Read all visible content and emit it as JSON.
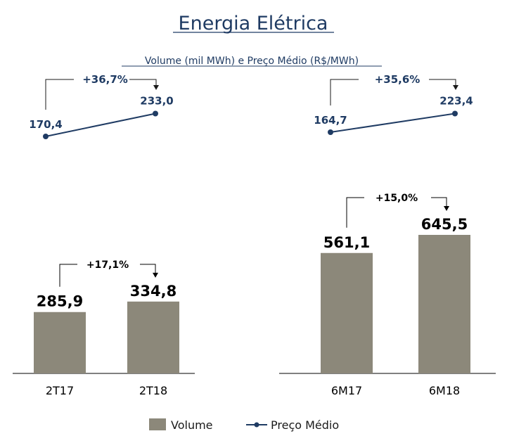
{
  "header": {
    "title": "Energia Elétrica",
    "subtitle": "Volume (mil MWh) e Preço Médio (R$/MWh)"
  },
  "colors": {
    "volume": "#8c887a",
    "price": "#1f3b63",
    "title": "#1f3b63",
    "axis": "#000000"
  },
  "legend": {
    "volume_label": "Volume",
    "price_label": "Preço Médio"
  },
  "chart_data": [
    {
      "type": "bar",
      "panel": "left",
      "categories": [
        "2T17",
        "2T18"
      ],
      "series": [
        {
          "name": "Volume",
          "values": [
            285.9,
            334.8
          ],
          "labels": [
            "285,9",
            "334,8"
          ]
        },
        {
          "name": "Preço Médio",
          "values": [
            170.4,
            233.0
          ],
          "labels": [
            "170,4",
            "233,0"
          ]
        }
      ],
      "volume_growth": "+17,1%",
      "price_growth": "+36,7%"
    },
    {
      "type": "bar",
      "panel": "right",
      "categories": [
        "6M17",
        "6M18"
      ],
      "series": [
        {
          "name": "Volume",
          "values": [
            561.1,
            645.5
          ],
          "labels": [
            "561,1",
            "645,5"
          ]
        },
        {
          "name": "Preço Médio",
          "values": [
            164.7,
            223.4
          ],
          "labels": [
            "164,7",
            "223,4"
          ]
        }
      ],
      "volume_growth": "+15,0%",
      "price_growth": "+35,6%"
    }
  ]
}
